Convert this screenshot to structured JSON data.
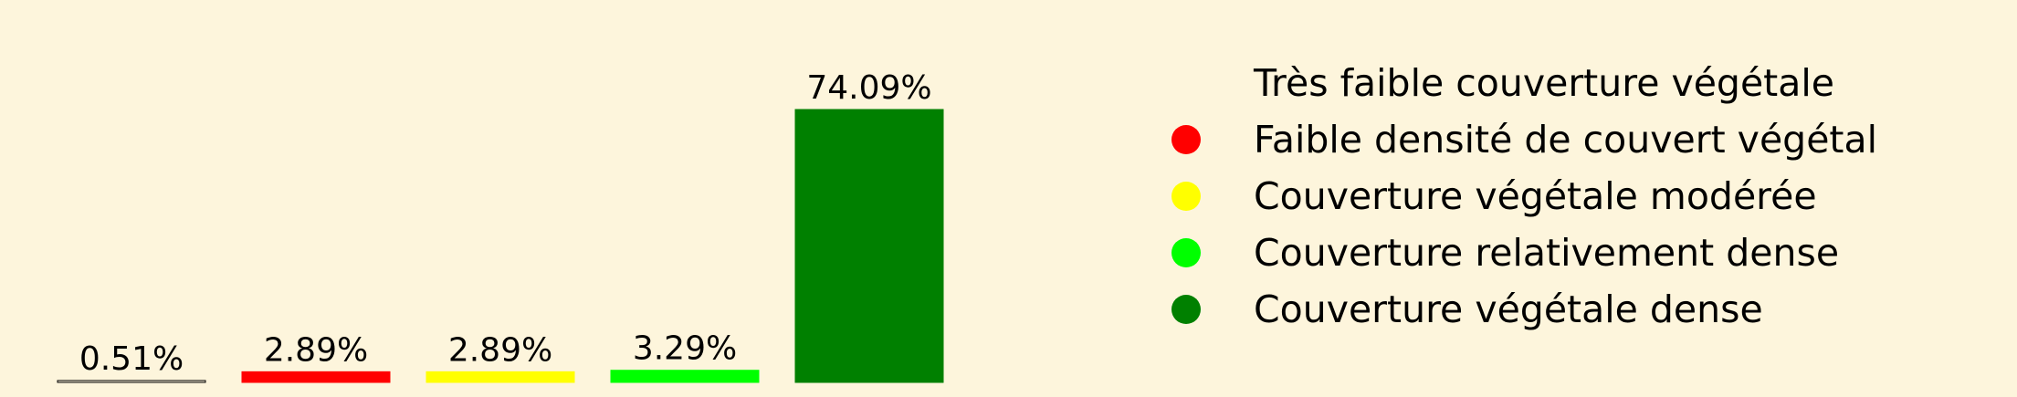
{
  "chart_data": {
    "type": "bar",
    "categories": [
      "Très faible couverture végétale",
      "Faible densité de couvert végétal",
      "Couverture végétale modérée",
      "Couverture relativement dense",
      "Couverture végétale dense"
    ],
    "values": [
      0.51,
      2.89,
      2.89,
      3.29,
      74.09
    ],
    "value_labels": [
      "0.51%",
      "2.89%",
      "2.89%",
      "3.29%",
      "74.09%"
    ],
    "colors": [
      "#fdf5dc",
      "#ff0000",
      "#ffff00",
      "#00ff00",
      "#008000"
    ],
    "edge_colors": [
      "#000000",
      "#ff0000",
      "#ffff00",
      "#00ff00",
      "#008000"
    ],
    "legend_colors": [
      "#fdf5dc",
      "#ff0000",
      "#ffff00",
      "#00ff00",
      "#008000"
    ],
    "title": "",
    "xlabel": "",
    "ylabel": "",
    "ylim": [
      0,
      80
    ],
    "legend_position": "right",
    "grid": false,
    "axes_visible": false
  }
}
